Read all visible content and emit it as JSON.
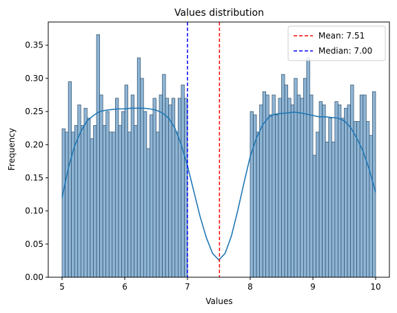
{
  "chart_data": {
    "type": "bar",
    "title": "Values distribution",
    "xlabel": "Values",
    "ylabel": "Frequency",
    "xlim": [
      4.78,
      10.22
    ],
    "ylim": [
      0,
      0.385
    ],
    "xticks": [
      5,
      6,
      7,
      8,
      9,
      10
    ],
    "yticks": [
      0.0,
      0.05,
      0.1,
      0.15,
      0.2,
      0.25,
      0.3,
      0.35
    ],
    "bin_width": 0.05,
    "bins": [
      {
        "x0": 5.0,
        "value": 0.224
      },
      {
        "x0": 5.05,
        "value": 0.219
      },
      {
        "x0": 5.1,
        "value": 0.295
      },
      {
        "x0": 5.15,
        "value": 0.219
      },
      {
        "x0": 5.2,
        "value": 0.229
      },
      {
        "x0": 5.25,
        "value": 0.26
      },
      {
        "x0": 5.3,
        "value": 0.229
      },
      {
        "x0": 5.35,
        "value": 0.255
      },
      {
        "x0": 5.4,
        "value": 0.24
      },
      {
        "x0": 5.45,
        "value": 0.209
      },
      {
        "x0": 5.5,
        "value": 0.229
      },
      {
        "x0": 5.55,
        "value": 0.366
      },
      {
        "x0": 5.6,
        "value": 0.275
      },
      {
        "x0": 5.65,
        "value": 0.229
      },
      {
        "x0": 5.7,
        "value": 0.25
      },
      {
        "x0": 5.75,
        "value": 0.219
      },
      {
        "x0": 5.8,
        "value": 0.219
      },
      {
        "x0": 5.85,
        "value": 0.27
      },
      {
        "x0": 5.9,
        "value": 0.229
      },
      {
        "x0": 5.95,
        "value": 0.25
      },
      {
        "x0": 6.0,
        "value": 0.29
      },
      {
        "x0": 6.05,
        "value": 0.219
      },
      {
        "x0": 6.1,
        "value": 0.275
      },
      {
        "x0": 6.15,
        "value": 0.229
      },
      {
        "x0": 6.2,
        "value": 0.331
      },
      {
        "x0": 6.25,
        "value": 0.3
      },
      {
        "x0": 6.3,
        "value": 0.25
      },
      {
        "x0": 6.35,
        "value": 0.194
      },
      {
        "x0": 6.4,
        "value": 0.245
      },
      {
        "x0": 6.45,
        "value": 0.27
      },
      {
        "x0": 6.5,
        "value": 0.219
      },
      {
        "x0": 6.55,
        "value": 0.275
      },
      {
        "x0": 6.6,
        "value": 0.306
      },
      {
        "x0": 6.65,
        "value": 0.27
      },
      {
        "x0": 6.7,
        "value": 0.26
      },
      {
        "x0": 6.75,
        "value": 0.27
      },
      {
        "x0": 6.8,
        "value": 0.219
      },
      {
        "x0": 6.85,
        "value": 0.27
      },
      {
        "x0": 6.9,
        "value": 0.29
      },
      {
        "x0": 6.95,
        "value": 0.27
      },
      {
        "x0": 8.0,
        "value": 0.25
      },
      {
        "x0": 8.05,
        "value": 0.245
      },
      {
        "x0": 8.1,
        "value": 0.219
      },
      {
        "x0": 8.15,
        "value": 0.26
      },
      {
        "x0": 8.2,
        "value": 0.28
      },
      {
        "x0": 8.25,
        "value": 0.275
      },
      {
        "x0": 8.3,
        "value": 0.245
      },
      {
        "x0": 8.35,
        "value": 0.275
      },
      {
        "x0": 8.4,
        "value": 0.245
      },
      {
        "x0": 8.45,
        "value": 0.27
      },
      {
        "x0": 8.5,
        "value": 0.306
      },
      {
        "x0": 8.55,
        "value": 0.29
      },
      {
        "x0": 8.6,
        "value": 0.27
      },
      {
        "x0": 8.65,
        "value": 0.26
      },
      {
        "x0": 8.7,
        "value": 0.3
      },
      {
        "x0": 8.75,
        "value": 0.275
      },
      {
        "x0": 8.8,
        "value": 0.27
      },
      {
        "x0": 8.85,
        "value": 0.3
      },
      {
        "x0": 8.9,
        "value": 0.331
      },
      {
        "x0": 8.95,
        "value": 0.275
      },
      {
        "x0": 9.0,
        "value": 0.184
      },
      {
        "x0": 9.05,
        "value": 0.219
      },
      {
        "x0": 9.1,
        "value": 0.265
      },
      {
        "x0": 9.15,
        "value": 0.26
      },
      {
        "x0": 9.2,
        "value": 0.204
      },
      {
        "x0": 9.25,
        "value": 0.24
      },
      {
        "x0": 9.3,
        "value": 0.204
      },
      {
        "x0": 9.35,
        "value": 0.265
      },
      {
        "x0": 9.4,
        "value": 0.26
      },
      {
        "x0": 9.45,
        "value": 0.24
      },
      {
        "x0": 9.5,
        "value": 0.255
      },
      {
        "x0": 9.55,
        "value": 0.26
      },
      {
        "x0": 9.6,
        "value": 0.29
      },
      {
        "x0": 9.65,
        "value": 0.235
      },
      {
        "x0": 9.7,
        "value": 0.235
      },
      {
        "x0": 9.75,
        "value": 0.275
      },
      {
        "x0": 9.8,
        "value": 0.275
      },
      {
        "x0": 9.85,
        "value": 0.235
      },
      {
        "x0": 9.9,
        "value": 0.214
      },
      {
        "x0": 9.95,
        "value": 0.28
      }
    ],
    "kde": {
      "x": [
        5.0,
        5.1,
        5.2,
        5.3,
        5.4,
        5.5,
        5.6,
        5.7,
        5.8,
        5.9,
        6.0,
        6.1,
        6.2,
        6.3,
        6.4,
        6.5,
        6.6,
        6.7,
        6.8,
        6.9,
        7.0,
        7.1,
        7.2,
        7.3,
        7.4,
        7.5,
        7.6,
        7.7,
        7.8,
        7.9,
        8.0,
        8.1,
        8.2,
        8.3,
        8.4,
        8.5,
        8.6,
        8.7,
        8.8,
        8.9,
        9.0,
        9.1,
        9.2,
        9.3,
        9.4,
        9.5,
        9.6,
        9.7,
        9.8,
        9.9,
        10.0
      ],
      "y": [
        0.12,
        0.165,
        0.198,
        0.22,
        0.236,
        0.244,
        0.25,
        0.252,
        0.253,
        0.254,
        0.254,
        0.255,
        0.255,
        0.255,
        0.254,
        0.252,
        0.248,
        0.24,
        0.225,
        0.2,
        0.168,
        0.13,
        0.092,
        0.06,
        0.036,
        0.026,
        0.036,
        0.062,
        0.1,
        0.142,
        0.182,
        0.21,
        0.23,
        0.242,
        0.246,
        0.247,
        0.248,
        0.249,
        0.248,
        0.246,
        0.244,
        0.242,
        0.242,
        0.241,
        0.24,
        0.236,
        0.226,
        0.21,
        0.19,
        0.162,
        0.128
      ]
    },
    "mean": 7.51,
    "median": 7.0,
    "legend": {
      "placement": "top-right",
      "entries": [
        {
          "label": "Mean: 7.51",
          "color": "#ff0000"
        },
        {
          "label": "Median: 7.00",
          "color": "#0000ff"
        }
      ]
    },
    "colors": {
      "bar_fill": "#8fb5d5",
      "bar_edge": "#2a4a66",
      "kde_line": "#1f77b4"
    }
  }
}
